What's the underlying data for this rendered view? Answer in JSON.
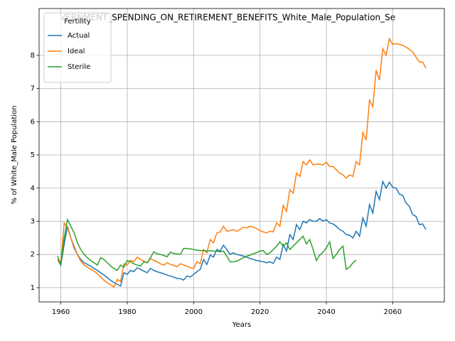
{
  "chart_data": {
    "type": "line",
    "title": "VERNMENT_SPENDING_ON_RETIREMENT_BENEFITS_White_Male_Population_Se",
    "x_label": "Years",
    "y_label": "% of White_Male Population",
    "legend_title": "Fertility",
    "legend": "upper left",
    "grid": true,
    "xlim": [
      1953.45,
      2075.55
    ],
    "ylim": [
      0.57,
      9.41
    ],
    "xticks": [
      1960,
      1980,
      2000,
      2020,
      2040,
      2060
    ],
    "yticks": [
      1,
      2,
      3,
      4,
      5,
      6,
      7,
      8
    ],
    "x": [
      1959,
      1960,
      1961,
      1962,
      1963,
      1964,
      1965,
      1966,
      1967,
      1968,
      1969,
      1970,
      1971,
      1972,
      1973,
      1974,
      1975,
      1976,
      1977,
      1978,
      1979,
      1980,
      1981,
      1982,
      1983,
      1984,
      1985,
      1986,
      1987,
      1988,
      1989,
      1990,
      1991,
      1992,
      1993,
      1994,
      1995,
      1996,
      1997,
      1998,
      1999,
      2000,
      2001,
      2002,
      2003,
      2004,
      2005,
      2006,
      2007,
      2008,
      2009,
      2010,
      2011,
      2012,
      2013,
      2014,
      2015,
      2016,
      2017,
      2018,
      2019,
      2020,
      2021,
      2022,
      2023,
      2024,
      2025,
      2026,
      2027,
      2028,
      2029,
      2030,
      2031,
      2032,
      2033,
      2034,
      2035,
      2036,
      2037,
      2038,
      2039,
      2040,
      2041,
      2042,
      2043,
      2044,
      2045,
      2046,
      2047,
      2048,
      2049,
      2050,
      2051,
      2052,
      2053,
      2054,
      2055,
      2056,
      2057,
      2058,
      2059,
      2060,
      2061,
      2062,
      2063,
      2064,
      2065,
      2066,
      2067,
      2068,
      2069,
      2070
    ],
    "series": [
      {
        "name": "Actual",
        "color": "#1f77b4",
        "values": [
          1.85,
          1.68,
          2.3,
          2.85,
          2.5,
          2.2,
          2.0,
          1.85,
          1.75,
          1.7,
          1.65,
          1.58,
          1.52,
          1.45,
          1.38,
          1.3,
          1.22,
          1.15,
          1.1,
          1.05,
          1.45,
          1.4,
          1.52,
          1.48,
          1.6,
          1.55,
          1.5,
          1.45,
          1.58,
          1.52,
          1.48,
          1.45,
          1.42,
          1.38,
          1.35,
          1.32,
          1.28,
          1.27,
          1.23,
          1.35,
          1.32,
          1.4,
          1.48,
          1.55,
          1.85,
          1.7,
          1.98,
          1.92,
          2.15,
          2.1,
          2.28,
          2.15,
          2.0,
          2.05,
          2.0,
          1.98,
          1.95,
          1.92,
          1.88,
          1.85,
          1.82,
          1.8,
          1.78,
          1.75,
          1.78,
          1.73,
          1.92,
          1.85,
          2.3,
          2.1,
          2.6,
          2.45,
          2.9,
          2.75,
          3.0,
          2.95,
          3.05,
          3.0,
          3.0,
          3.08,
          3.0,
          3.05,
          2.95,
          2.92,
          2.85,
          2.75,
          2.7,
          2.6,
          2.58,
          2.5,
          2.7,
          2.55,
          3.1,
          2.85,
          3.5,
          3.25,
          3.9,
          3.65,
          4.2,
          4.0,
          4.18,
          4.02,
          4.0,
          3.82,
          3.78,
          3.55,
          3.45,
          3.2,
          3.15,
          2.9,
          2.92,
          2.75
        ]
      },
      {
        "name": "Ideal",
        "color": "#ff7f0e",
        "values": [
          1.85,
          1.75,
          2.95,
          2.8,
          2.5,
          2.25,
          2.0,
          1.8,
          1.68,
          1.62,
          1.55,
          1.5,
          1.42,
          1.32,
          1.22,
          1.15,
          1.08,
          1.02,
          1.25,
          1.18,
          1.72,
          1.68,
          1.82,
          1.78,
          1.92,
          1.85,
          1.8,
          1.75,
          1.88,
          1.82,
          1.78,
          1.72,
          1.68,
          1.75,
          1.7,
          1.67,
          1.63,
          1.72,
          1.68,
          1.65,
          1.6,
          1.58,
          1.78,
          1.72,
          2.15,
          2.05,
          2.45,
          2.35,
          2.65,
          2.68,
          2.85,
          2.7,
          2.72,
          2.75,
          2.7,
          2.75,
          2.82,
          2.8,
          2.85,
          2.82,
          2.78,
          2.72,
          2.68,
          2.65,
          2.7,
          2.68,
          2.95,
          2.85,
          3.48,
          3.3,
          3.95,
          3.85,
          4.45,
          4.35,
          4.8,
          4.7,
          4.85,
          4.7,
          4.72,
          4.72,
          4.7,
          4.78,
          4.65,
          4.65,
          4.55,
          4.45,
          4.4,
          4.3,
          4.4,
          4.35,
          4.8,
          4.7,
          5.68,
          5.45,
          6.65,
          6.45,
          7.55,
          7.25,
          8.2,
          8.0,
          8.5,
          8.33,
          8.35,
          8.33,
          8.3,
          8.25,
          8.18,
          8.1,
          7.95,
          7.8,
          7.8,
          7.62
        ]
      },
      {
        "name": "Sterile",
        "color": "#2ca02c",
        "values": [
          1.95,
          1.7,
          2.5,
          3.05,
          2.85,
          2.65,
          2.35,
          2.15,
          2.0,
          1.9,
          1.82,
          1.75,
          1.68,
          1.9,
          1.85,
          1.75,
          1.65,
          1.58,
          1.52,
          1.68,
          1.62,
          1.82,
          1.78,
          1.72,
          1.68,
          1.65,
          1.78,
          1.75,
          1.9,
          2.08,
          2.02,
          2.0,
          1.97,
          1.93,
          2.07,
          2.03,
          2.02,
          2.0,
          2.18,
          2.18,
          2.17,
          2.15,
          2.13,
          2.12,
          2.12,
          2.1,
          2.12,
          2.1,
          2.1,
          2.08,
          2.1,
          1.95,
          1.78,
          1.78,
          1.8,
          1.85,
          1.9,
          1.95,
          1.98,
          2.02,
          2.06,
          2.1,
          2.12,
          2.0,
          2.05,
          2.15,
          2.25,
          2.38,
          2.25,
          2.35,
          2.15,
          2.25,
          2.35,
          2.45,
          2.55,
          2.32,
          2.45,
          2.15,
          1.82,
          1.98,
          2.07,
          2.2,
          2.38,
          1.88,
          2.0,
          2.15,
          2.25,
          1.55,
          1.62,
          1.75,
          1.83,
          null,
          null,
          null,
          null,
          null,
          null,
          null,
          null,
          null,
          null,
          null,
          null,
          null,
          null,
          null,
          null,
          null,
          null,
          null,
          null,
          null
        ]
      }
    ]
  }
}
